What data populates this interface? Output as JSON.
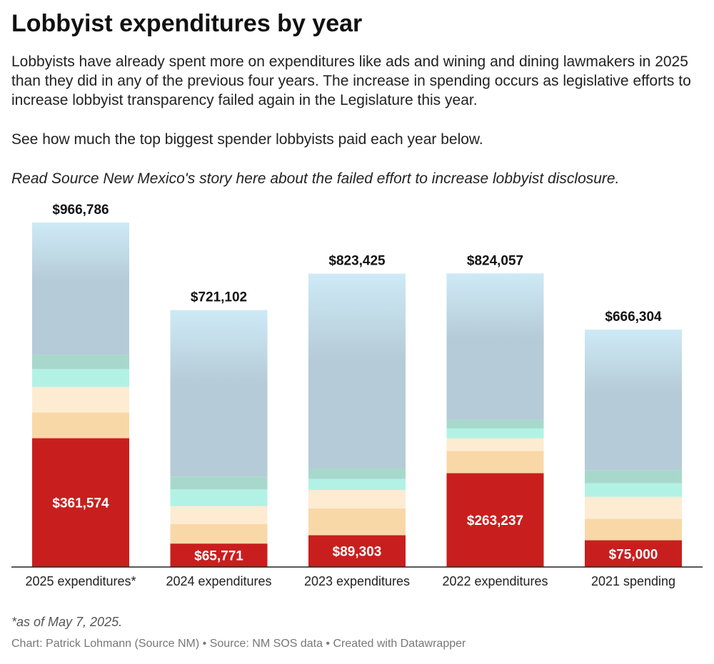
{
  "header": {
    "title": "Lobbyist expenditures by year",
    "intro": "Lobbyists have already spent more on expenditures like ads and wining and dining lawmakers in 2025 than they did in any of the previous four years. The increase in spending occurs as legislative efforts to increase lobbyist transparency failed again in the Legislature this year.",
    "see_more": "See how much the top biggest spender lobbyists paid each year below.",
    "read_more": "Read Source New Mexico's story here about the failed effort to increase lobbyist disclosure."
  },
  "footer": {
    "note": "*as of May 7, 2025.",
    "credit": "Chart: Patrick Lohmann (Source NM) • Source: NM SOS data • Created with Datawrapper"
  },
  "colors": {
    "seg1": "#c91e1e",
    "seg2": "#f9d8a8",
    "seg3": "#fdebd2",
    "seg4": "#b2f2e4",
    "seg5": "#a8d8cc",
    "top_from": "#cdeaf6",
    "top_to": "#b5cbd7",
    "axis": "#222222"
  },
  "chart_data": {
    "type": "bar",
    "stacked": true,
    "categories": [
      "2025 expenditures*",
      "2024 expenditures",
      "2023 expenditures",
      "2022 expenditures",
      "2021 spending"
    ],
    "totals": [
      966786,
      721102,
      823425,
      824057,
      666304
    ],
    "total_labels": [
      "$966,786",
      "$721,102",
      "$823,425",
      "$824,057",
      "$666,304"
    ],
    "series": [
      {
        "values": [
          361574,
          65771,
          89303,
          263237,
          75000
        ],
        "labels": [
          "$361,574",
          "$65,771",
          "$89,303",
          "$263,237",
          "$75,000"
        ]
      },
      {
        "values": [
          72000,
          55000,
          75000,
          62000,
          60000
        ]
      },
      {
        "values": [
          72000,
          50000,
          52000,
          36000,
          62000
        ]
      },
      {
        "values": [
          50000,
          47000,
          31000,
          28000,
          38000
        ]
      },
      {
        "values": [
          40000,
          36000,
          30000,
          25000,
          37000
        ]
      },
      {
        "values": [
          371212,
          467331,
          546122,
          409820,
          394304
        ]
      }
    ],
    "ylim": [
      0,
      966786
    ]
  }
}
